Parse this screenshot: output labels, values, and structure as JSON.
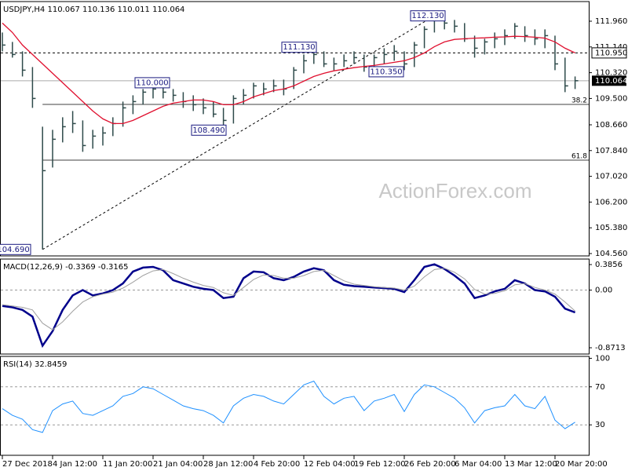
{
  "chart_data": [
    {
      "type": "ohlc",
      "title": "USDJPY,H4  110.067 110.136 110.011 110.064",
      "watermark": "ActionForex.com",
      "categories": [
        "27 Dec 2018",
        null,
        null,
        null,
        null,
        "4 Jan 12:00",
        null,
        null,
        null,
        null,
        "11 Jan 20:00",
        null,
        null,
        null,
        null,
        "21 Jan 04:00",
        null,
        null,
        null,
        null,
        "28 Jan 12:00",
        null,
        null,
        null,
        null,
        "4 Feb 20:00",
        null,
        null,
        null,
        null,
        "12 Feb 04:00",
        null,
        null,
        null,
        null,
        "19 Feb 12:00",
        null,
        null,
        null,
        null,
        "26 Feb 20:00",
        null,
        null,
        null,
        null,
        "6 Mar 04:00",
        null,
        null,
        null,
        null,
        "13 Mar 12:00",
        null,
        null,
        null,
        null,
        "20 Mar 20:00",
        null,
        null
      ],
      "high": [
        111.6,
        111.3,
        111.0,
        110.5,
        108.6,
        108.5,
        108.9,
        109.1,
        108.8,
        108.5,
        108.6,
        108.9,
        109.4,
        109.6,
        109.8,
        110.0,
        110.0,
        109.8,
        109.7,
        109.6,
        109.5,
        109.4,
        109.2,
        109.6,
        109.8,
        110.0,
        110.0,
        110.1,
        110.1,
        110.5,
        110.9,
        111.13,
        111.0,
        110.8,
        110.9,
        111.0,
        110.9,
        110.9,
        111.1,
        111.2,
        111.0,
        111.3,
        111.8,
        112.13,
        112.1,
        112.0,
        111.9,
        111.5,
        111.4,
        111.6,
        111.7,
        111.9,
        111.8,
        111.7,
        111.7,
        111.5,
        110.8,
        110.2
      ],
      "low": [
        111.0,
        110.8,
        110.2,
        109.2,
        104.69,
        107.3,
        108.1,
        108.4,
        107.8,
        107.9,
        108.0,
        108.3,
        108.6,
        109.0,
        109.3,
        109.5,
        109.5,
        109.4,
        109.2,
        109.1,
        109.0,
        108.9,
        108.49,
        108.7,
        109.3,
        109.5,
        109.6,
        109.7,
        109.6,
        109.8,
        110.3,
        110.6,
        110.5,
        110.4,
        110.5,
        110.6,
        110.35,
        110.4,
        110.6,
        110.7,
        110.4,
        110.5,
        111.1,
        111.6,
        111.7,
        111.6,
        111.3,
        110.8,
        110.9,
        111.1,
        111.2,
        111.4,
        111.3,
        111.2,
        111.1,
        110.4,
        109.7,
        109.8
      ],
      "close": [
        111.2,
        110.9,
        110.4,
        109.5,
        107.2,
        108.2,
        108.6,
        108.7,
        108.0,
        108.3,
        108.4,
        108.7,
        109.2,
        109.4,
        109.7,
        109.8,
        109.7,
        109.6,
        109.4,
        109.3,
        109.2,
        109.0,
        108.8,
        109.5,
        109.6,
        109.9,
        109.8,
        109.9,
        109.8,
        110.4,
        110.7,
        110.9,
        110.6,
        110.6,
        110.7,
        110.8,
        110.5,
        110.8,
        110.9,
        111.0,
        110.6,
        111.2,
        111.7,
        112.0,
        111.9,
        111.8,
        111.4,
        111.1,
        111.3,
        111.4,
        111.5,
        111.8,
        111.5,
        111.4,
        111.5,
        110.6,
        109.9,
        110.064
      ],
      "color": "#2e4a4a",
      "ma": {
        "color": "#e0102f",
        "values": [
          111.9,
          111.6,
          111.2,
          110.9,
          110.6,
          110.3,
          110.0,
          109.7,
          109.4,
          109.1,
          108.85,
          108.7,
          108.7,
          108.8,
          108.95,
          109.1,
          109.25,
          109.35,
          109.4,
          109.45,
          109.45,
          109.4,
          109.3,
          109.3,
          109.4,
          109.55,
          109.65,
          109.75,
          109.8,
          109.9,
          110.05,
          110.2,
          110.3,
          110.38,
          110.43,
          110.48,
          110.52,
          110.55,
          110.6,
          110.65,
          110.7,
          110.8,
          110.95,
          111.15,
          111.3,
          111.38,
          111.4,
          111.42,
          111.43,
          111.45,
          111.46,
          111.48,
          111.47,
          111.45,
          111.42,
          111.3,
          111.1,
          110.95
        ]
      },
      "ylim": [
        104.485,
        112.585
      ],
      "yticks": [
        {
          "value": 111.96,
          "label": "111.960"
        },
        {
          "value": 111.14,
          "label": "111.140"
        },
        {
          "value": 110.32,
          "label": "110.320"
        },
        {
          "value": 109.5,
          "label": "109.500"
        },
        {
          "value": 108.66,
          "label": "108.660"
        },
        {
          "value": 107.84,
          "label": "107.840"
        },
        {
          "value": 107.02,
          "label": "107.020"
        },
        {
          "value": 106.2,
          "label": "106.200"
        },
        {
          "value": 105.38,
          "label": "105.380"
        },
        {
          "value": 104.56,
          "label": "104.560"
        }
      ],
      "annotations": [
        {
          "value": 112.13,
          "label": "112.130"
        },
        {
          "value": 111.13,
          "label": "111.130"
        },
        {
          "value": 110.0,
          "label": "110.000"
        },
        {
          "value": 108.49,
          "label": "108.490"
        },
        {
          "value": 110.35,
          "label": "110.350"
        },
        {
          "value": 104.69,
          "label": "104.690"
        }
      ],
      "resistance": {
        "value": 110.95,
        "label": "110.950"
      },
      "last_price": {
        "value": 110.064,
        "label": "110.064"
      },
      "fib": [
        {
          "value": 109.31,
          "label": "38.2"
        },
        {
          "value": 107.535,
          "label": "61.8"
        }
      ]
    },
    {
      "type": "line",
      "title": "MACD(12,26,9) -0.3369 -0.3165",
      "series": [
        {
          "color": "#00008b",
          "values": [
            -0.24,
            -0.26,
            -0.3,
            -0.4,
            -0.84,
            -0.62,
            -0.3,
            -0.08,
            0.0,
            -0.08,
            -0.05,
            0.0,
            0.1,
            0.28,
            0.34,
            0.35,
            0.3,
            0.15,
            0.1,
            0.05,
            0.02,
            0.0,
            -0.12,
            -0.1,
            0.18,
            0.28,
            0.27,
            0.18,
            0.15,
            0.2,
            0.28,
            0.33,
            0.3,
            0.15,
            0.08,
            0.06,
            0.05,
            0.04,
            0.03,
            0.02,
            -0.03,
            0.15,
            0.35,
            0.39,
            0.32,
            0.22,
            0.1,
            -0.12,
            -0.08,
            -0.02,
            0.02,
            0.15,
            0.1,
            0.0,
            -0.02,
            -0.1,
            -0.28,
            -0.3369
          ]
        },
        {
          "color": "#a0a0a0",
          "values": [
            -0.22,
            -0.24,
            -0.26,
            -0.3,
            -0.5,
            -0.6,
            -0.48,
            -0.32,
            -0.18,
            -0.1,
            -0.06,
            -0.03,
            0.03,
            0.12,
            0.22,
            0.29,
            0.31,
            0.25,
            0.18,
            0.12,
            0.07,
            0.04,
            -0.04,
            -0.08,
            0.04,
            0.16,
            0.23,
            0.22,
            0.18,
            0.18,
            0.22,
            0.28,
            0.3,
            0.22,
            0.14,
            0.09,
            0.07,
            0.05,
            0.04,
            0.03,
            0.0,
            0.06,
            0.2,
            0.31,
            0.33,
            0.27,
            0.17,
            0.01,
            -0.06,
            -0.05,
            -0.01,
            0.08,
            0.1,
            0.04,
            0.0,
            -0.06,
            -0.18,
            -0.3165
          ]
        }
      ],
      "ylim": [
        -0.966,
        0.469
      ],
      "yticks": [
        0.3856,
        {
          "value": 0,
          "label": "0.00"
        },
        -0.8713
      ],
      "levels": [
        0
      ]
    },
    {
      "type": "line",
      "title": "RSI(14) 32.8459",
      "series": [
        {
          "color": "#1e90ff",
          "values": [
            47,
            40,
            36,
            25,
            22,
            45,
            52,
            55,
            42,
            40,
            45,
            50,
            60,
            63,
            70,
            68,
            62,
            56,
            50,
            47,
            45,
            40,
            32,
            50,
            58,
            62,
            60,
            55,
            52,
            62,
            72,
            76,
            60,
            52,
            58,
            60,
            45,
            55,
            58,
            62,
            44,
            62,
            72,
            70,
            64,
            58,
            48,
            32,
            45,
            48,
            50,
            62,
            50,
            47,
            60,
            35,
            26,
            32.8459
          ]
        }
      ],
      "ylim": [
        -2,
        102
      ],
      "yticks": [
        100,
        70,
        30
      ],
      "levels": [
        70,
        30
      ]
    }
  ]
}
